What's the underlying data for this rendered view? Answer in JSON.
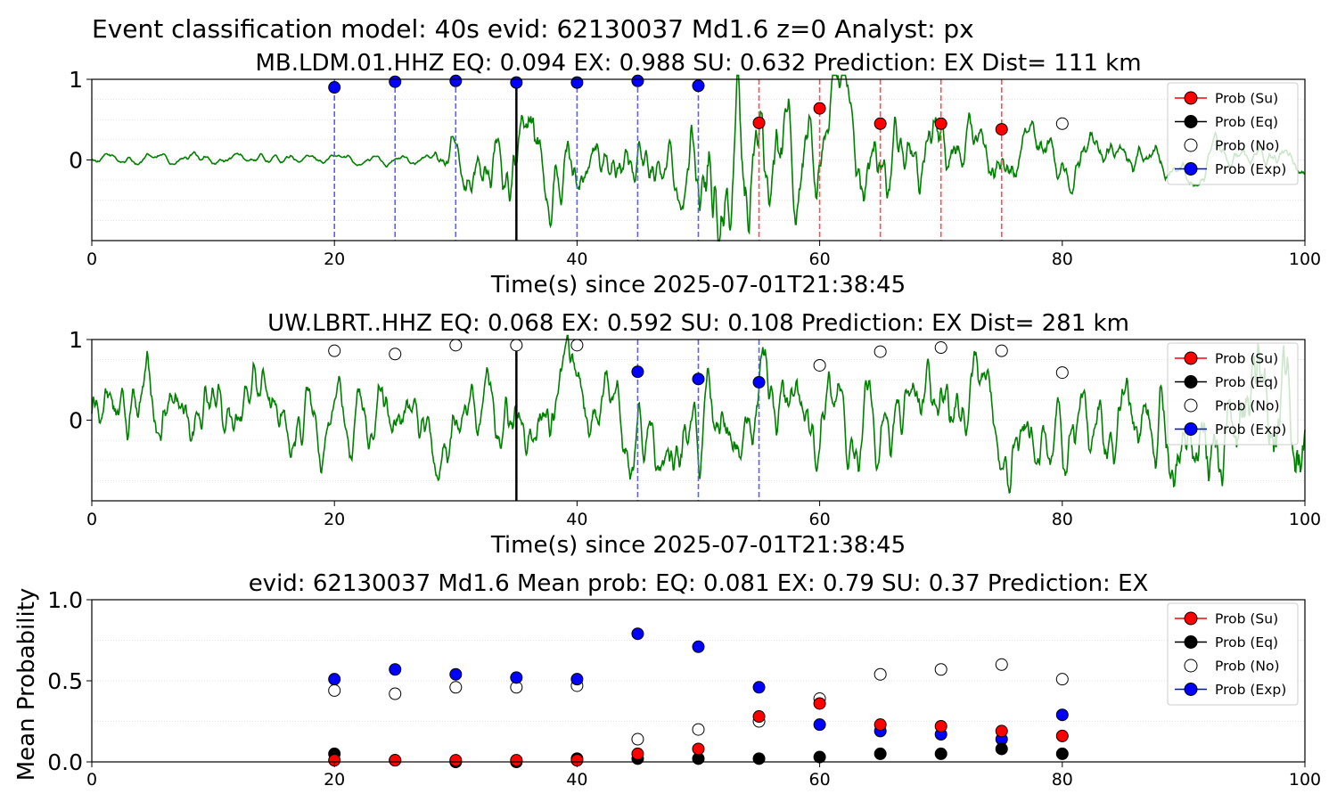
{
  "figure": {
    "suptitle": "Event classification model: 40s evid: 62130037 Md1.6 z=0 Analyst: px"
  },
  "legend": {
    "entries": [
      {
        "label": "Prob (Su)",
        "color": "#ff0000",
        "marker": "filled"
      },
      {
        "label": "Prob (Eq)",
        "color": "#000000",
        "marker": "filled"
      },
      {
        "label": "Prob (No)",
        "color": "#ffffff",
        "marker": "open"
      },
      {
        "label": "Prob (Exp)",
        "color": "#0000ff",
        "marker": "filled"
      }
    ]
  },
  "colors": {
    "trace": "#008000",
    "su": "#ff0000",
    "eq": "#000000",
    "exp": "#0000ff",
    "pick_line": "#000000"
  },
  "chart_data": [
    {
      "type": "line",
      "title": "MB.LDM.01.HHZ   EQ: 0.094  EX: 0.988  SU: 0.632   Prediction: EX    Dist= 111 km",
      "xlabel": "Time(s) since 2025-07-01T21:38:45",
      "ylabel": "",
      "xlim": [
        0,
        100
      ],
      "ylim": [
        -1,
        1
      ],
      "xticks": [
        "0",
        "20",
        "40",
        "60",
        "80",
        "100"
      ],
      "yticks": [
        "0",
        "1"
      ],
      "grid": "horizontal dotted",
      "legend_position": "upper right",
      "pick_time": 35,
      "prediction_windows": [
        {
          "x": 20,
          "p": 0.9,
          "cls": "exp"
        },
        {
          "x": 25,
          "p": 0.97,
          "cls": "exp"
        },
        {
          "x": 30,
          "p": 0.98,
          "cls": "exp"
        },
        {
          "x": 35,
          "p": 0.96,
          "cls": "exp"
        },
        {
          "x": 40,
          "p": 0.96,
          "cls": "exp"
        },
        {
          "x": 45,
          "p": 0.98,
          "cls": "exp"
        },
        {
          "x": 50,
          "p": 0.92,
          "cls": "exp"
        },
        {
          "x": 55,
          "p": 0.46,
          "cls": "su"
        },
        {
          "x": 60,
          "p": 0.64,
          "cls": "su"
        },
        {
          "x": 65,
          "p": 0.45,
          "cls": "su"
        },
        {
          "x": 70,
          "p": 0.45,
          "cls": "su"
        },
        {
          "x": 75,
          "p": 0.38,
          "cls": "su"
        },
        {
          "x": 80,
          "p": 0.45,
          "cls": "no"
        }
      ],
      "trace_envelope": [
        [
          0,
          0.05
        ],
        [
          28,
          0.05
        ],
        [
          30,
          0.25
        ],
        [
          35,
          0.55
        ],
        [
          40,
          0.35
        ],
        [
          48,
          0.3
        ],
        [
          50,
          0.6
        ],
        [
          52,
          1.0
        ],
        [
          58,
          0.55
        ],
        [
          65,
          0.45
        ],
        [
          75,
          0.3
        ],
        [
          90,
          0.15
        ],
        [
          100,
          0.12
        ]
      ]
    },
    {
      "type": "line",
      "title": "UW.LBRT..HHZ   EQ: 0.068  EX: 0.592  SU: 0.108   Prediction: EX    Dist= 281 km",
      "xlabel": "Time(s) since 2025-07-01T21:38:45",
      "ylabel": "",
      "xlim": [
        0,
        100
      ],
      "ylim": [
        -1,
        1
      ],
      "xticks": [
        "0",
        "20",
        "40",
        "60",
        "80",
        "100"
      ],
      "yticks": [
        "0",
        "1"
      ],
      "grid": "horizontal dotted",
      "legend_position": "upper right",
      "pick_time": 35,
      "prediction_windows": [
        {
          "x": 20,
          "p": 0.86,
          "cls": "no"
        },
        {
          "x": 25,
          "p": 0.82,
          "cls": "no"
        },
        {
          "x": 30,
          "p": 0.93,
          "cls": "no"
        },
        {
          "x": 35,
          "p": 0.93,
          "cls": "no"
        },
        {
          "x": 40,
          "p": 0.93,
          "cls": "no"
        },
        {
          "x": 45,
          "p": 0.6,
          "cls": "exp"
        },
        {
          "x": 50,
          "p": 0.51,
          "cls": "exp"
        },
        {
          "x": 55,
          "p": 0.47,
          "cls": "exp"
        },
        {
          "x": 60,
          "p": 0.68,
          "cls": "no"
        },
        {
          "x": 65,
          "p": 0.85,
          "cls": "no"
        },
        {
          "x": 70,
          "p": 0.9,
          "cls": "no"
        },
        {
          "x": 75,
          "p": 0.86,
          "cls": "no"
        },
        {
          "x": 80,
          "p": 0.59,
          "cls": "no"
        }
      ],
      "trace_envelope": [
        [
          0,
          0.4
        ],
        [
          20,
          0.35
        ],
        [
          40,
          0.4
        ],
        [
          60,
          0.45
        ],
        [
          85,
          0.45
        ],
        [
          92,
          0.6
        ],
        [
          97,
          0.9
        ],
        [
          100,
          1.0
        ]
      ]
    },
    {
      "type": "scatter",
      "title": "evid: 62130037  Md1.6   Mean prob:   EQ: 0.081  EX: 0.79  SU: 0.37   Prediction: EX",
      "xlabel": "",
      "ylabel": "Mean Probability",
      "xlim": [
        0,
        100
      ],
      "ylim": [
        0,
        1
      ],
      "xticks": [
        "0",
        "20",
        "40",
        "60",
        "80",
        "100"
      ],
      "yticks": [
        "0.0",
        "0.5",
        "1.0"
      ],
      "grid": "horizontal dotted",
      "legend_position": "upper right",
      "x": [
        20,
        25,
        30,
        35,
        40,
        45,
        50,
        55,
        60,
        65,
        70,
        75,
        80
      ],
      "series": [
        {
          "name": "Prob (Su)",
          "cls": "su",
          "values": [
            0.01,
            0.01,
            0.01,
            0.01,
            0.01,
            0.05,
            0.08,
            0.28,
            0.36,
            0.23,
            0.22,
            0.19,
            0.16
          ]
        },
        {
          "name": "Prob (Eq)",
          "cls": "eq",
          "values": [
            0.05,
            0.01,
            0.0,
            0.0,
            0.02,
            0.02,
            0.02,
            0.02,
            0.03,
            0.05,
            0.05,
            0.08,
            0.05
          ]
        },
        {
          "name": "Prob (No)",
          "cls": "no",
          "values": [
            0.44,
            0.42,
            0.46,
            0.46,
            0.47,
            0.14,
            0.2,
            0.25,
            0.39,
            0.54,
            0.57,
            0.6,
            0.51
          ]
        },
        {
          "name": "Prob (Exp)",
          "cls": "exp",
          "values": [
            0.51,
            0.57,
            0.54,
            0.52,
            0.51,
            0.79,
            0.71,
            0.46,
            0.23,
            0.19,
            0.17,
            0.14,
            0.29
          ]
        }
      ]
    }
  ]
}
